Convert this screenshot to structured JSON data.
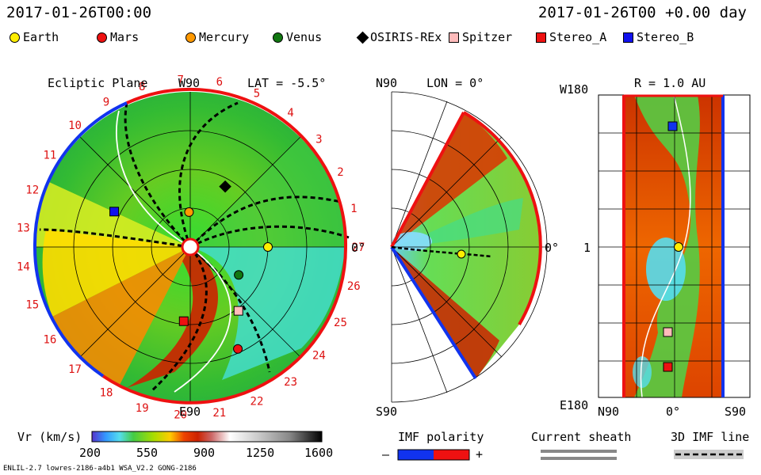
{
  "header": {
    "left_time": "2017-01-26T00:00",
    "right_time": "2017-01-26T00 +0.00 day"
  },
  "legend": [
    {
      "name": "Earth",
      "shape": "circle",
      "color": "#ffee00"
    },
    {
      "name": "Mars",
      "shape": "circle",
      "color": "#ee1111"
    },
    {
      "name": "Mercury",
      "shape": "circle",
      "color": "#ff9900"
    },
    {
      "name": "Venus",
      "shape": "circle",
      "color": "#117711"
    },
    {
      "name": "OSIRIS-REx",
      "shape": "diamond",
      "color": "#000000"
    },
    {
      "name": "Spitzer",
      "shape": "square",
      "color": "#ffbbbb"
    },
    {
      "name": "Stereo_A",
      "shape": "square",
      "color": "#ee1111"
    },
    {
      "name": "Stereo_B",
      "shape": "square",
      "color": "#1111ee"
    }
  ],
  "panels": {
    "ecliptic": {
      "title": "Ecliptic Plane",
      "top_label": "W90",
      "lat_label": "LAT = -5.5°",
      "bottom_label": "E90",
      "right_label": "0°"
    },
    "meridional": {
      "top_label": "N90",
      "lon_label": "LON = 0°",
      "bottom_label": "S90",
      "right_label": "0°"
    },
    "radial": {
      "top_left": "W180",
      "title": "R = 1.0 AU",
      "mid_label": "1",
      "bottom_left": "E180",
      "x_ticks": [
        "N90",
        "0°",
        "S90"
      ]
    }
  },
  "colorbar": {
    "label": "Vr (km/s)",
    "ticks": [
      "200",
      "550",
      "900",
      "1250",
      "1600"
    ],
    "min": 200,
    "max": 1600
  },
  "imf_polarity": {
    "label": "IMF polarity",
    "minus": "–",
    "plus": "+"
  },
  "current_sheath": {
    "label": "Current sheath"
  },
  "imf_line": {
    "label": "3D IMF line"
  },
  "footer": {
    "model": "ENLIL-2.7 lowres-2186-a4b1 WSA_V2.2 GONG-2186"
  },
  "chart_data": {
    "type": "heatmap",
    "title": "Ecliptic Plane",
    "variable": "Vr (km/s)",
    "value_range": [
      200,
      1600
    ],
    "carrington_rotation_ticks": [
      "19",
      "20",
      "21",
      "22",
      "23",
      "24",
      "25",
      "26",
      "27",
      "1",
      "2",
      "3",
      "4",
      "5",
      "6",
      "7",
      "8",
      "9",
      "10",
      "11",
      "12",
      "13",
      "14",
      "15",
      "16",
      "17",
      "18"
    ],
    "bodies": [
      {
        "name": "Earth",
        "r_au": 1.0,
        "angle_deg": 0
      },
      {
        "name": "Mars",
        "r_au": 1.45,
        "angle_deg": -65
      },
      {
        "name": "Mercury",
        "r_au": 0.45,
        "angle_deg": 92
      },
      {
        "name": "Venus",
        "r_au": 0.72,
        "angle_deg": -30
      },
      {
        "name": "OSIRIS-REx",
        "r_au": 0.9,
        "angle_deg": 60
      },
      {
        "name": "Spitzer",
        "r_au": 1.03,
        "angle_deg": -53
      },
      {
        "name": "Stereo_A",
        "r_au": 0.96,
        "angle_deg": -95
      },
      {
        "name": "Stereo_B",
        "r_au": 1.08,
        "angle_deg": 155
      }
    ]
  }
}
